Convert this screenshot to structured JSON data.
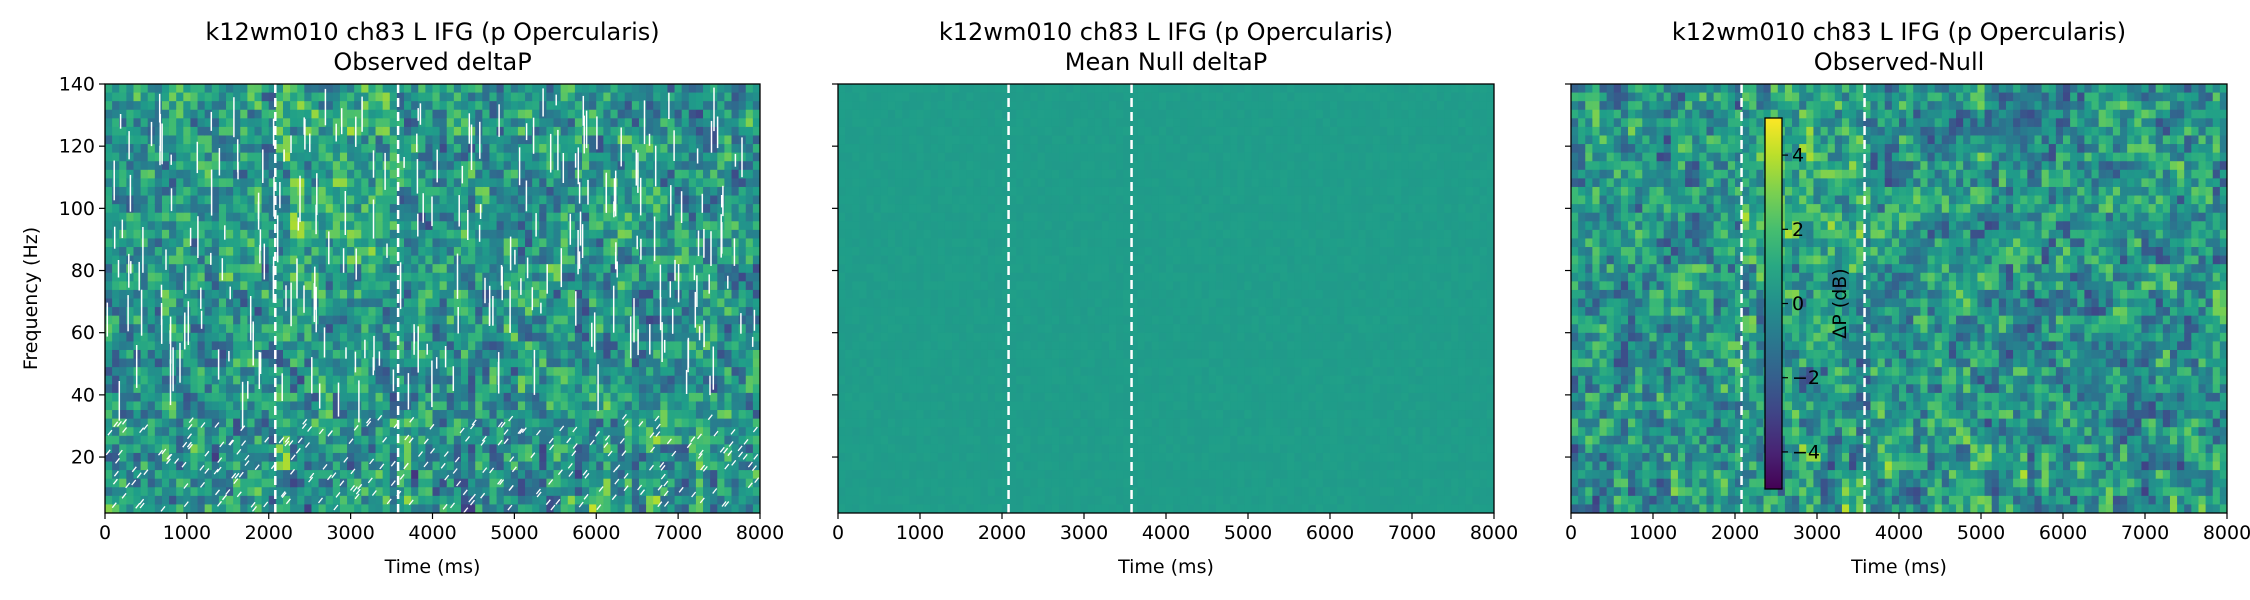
{
  "figure": {
    "background": "#ffffff"
  },
  "chart_data": [
    {
      "type": "heatmap",
      "title": "k12wm010 ch83 L IFG (p Opercularis)",
      "subtitle": "Observed deltaP",
      "xlabel": "Time (ms)",
      "ylabel": "Frequency (Hz)",
      "xlim": [
        0,
        8000
      ],
      "ylim": [
        2,
        140
      ],
      "xticks": [
        0,
        1000,
        2000,
        3000,
        4000,
        5000,
        6000,
        7000,
        8000
      ],
      "yticks": [
        20,
        40,
        60,
        80,
        100,
        120,
        140
      ],
      "show_ytick_labels": true,
      "event_markers_ms": [
        2080,
        3580
      ],
      "colormap": "viridis",
      "clim": [
        -5,
        5
      ],
      "texture": "observed",
      "significance_mask": true,
      "ytick_labels": [
        "20",
        "40",
        "60",
        "80",
        "100",
        "120",
        "140"
      ]
    },
    {
      "type": "heatmap",
      "title": "k12wm010 ch83 L IFG (p Opercularis)",
      "subtitle": "Mean Null deltaP",
      "xlabel": "Time (ms)",
      "ylabel": "",
      "xlim": [
        0,
        8000
      ],
      "ylim": [
        2,
        140
      ],
      "xticks": [
        0,
        1000,
        2000,
        3000,
        4000,
        5000,
        6000,
        7000,
        8000
      ],
      "yticks": [
        20,
        40,
        60,
        80,
        100,
        120,
        140
      ],
      "show_ytick_labels": false,
      "event_markers_ms": [
        2080,
        3580
      ],
      "colormap": "viridis",
      "clim": [
        -5,
        5
      ],
      "texture": "null",
      "significance_mask": false
    },
    {
      "type": "heatmap",
      "title": "k12wm010 ch83 L IFG (p Opercularis)",
      "subtitle": "Observed-Null",
      "xlabel": "Time (ms)",
      "ylabel": "",
      "xlim": [
        0,
        8000
      ],
      "ylim": [
        2,
        140
      ],
      "xticks": [
        0,
        1000,
        2000,
        3000,
        4000,
        5000,
        6000,
        7000,
        8000
      ],
      "yticks": [
        20,
        40,
        60,
        80,
        100,
        120,
        140
      ],
      "show_ytick_labels": false,
      "event_markers_ms": [
        2080,
        3580
      ],
      "colormap": "viridis",
      "clim": [
        -5,
        5
      ],
      "texture": "observed",
      "significance_mask": false,
      "colorbar": {
        "label": "ΔP (dB)",
        "range": [
          -5,
          5
        ],
        "ticks": [
          -4,
          -2,
          0,
          2,
          4
        ],
        "tick_labels": [
          "−4",
          "−2",
          "0",
          "2",
          "4"
        ],
        "placement": "inset-left"
      }
    }
  ],
  "xtick_labels": [
    "0",
    "1000",
    "2000",
    "3000",
    "4000",
    "5000",
    "6000",
    "7000",
    "8000"
  ]
}
